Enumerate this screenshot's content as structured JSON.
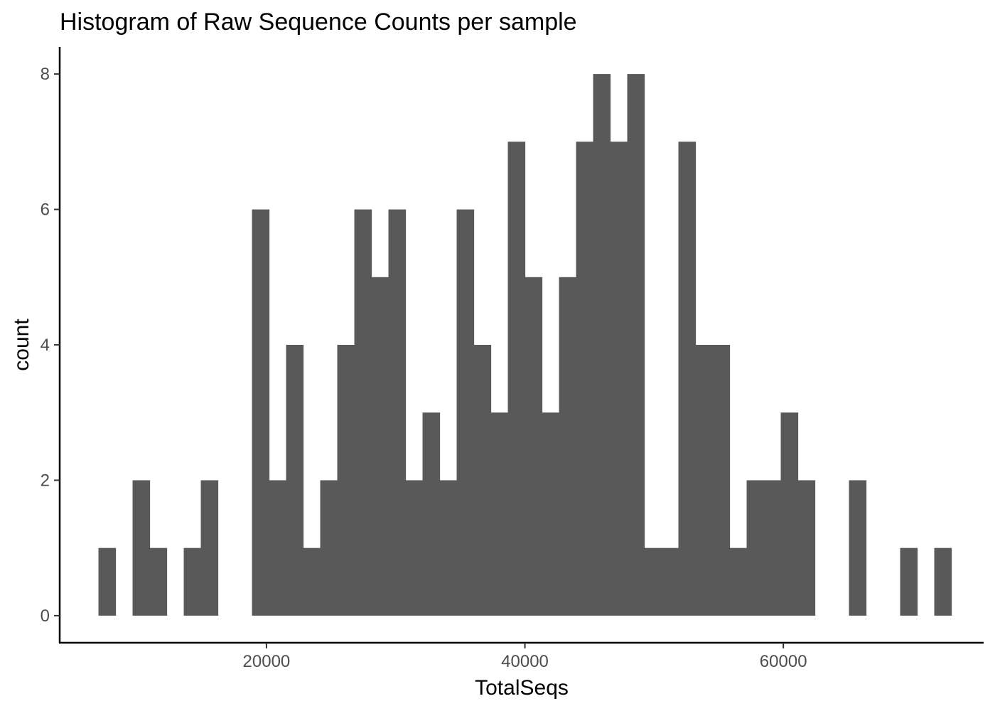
{
  "chart_data": {
    "type": "bar",
    "title": "Histogram of Raw Sequence Counts per sample",
    "xlabel": "TotalSeqs",
    "ylabel": "count",
    "x_ticks": [
      20000,
      40000,
      60000
    ],
    "y_ticks": [
      0,
      2,
      4,
      6,
      8
    ],
    "xlim": [
      4000,
      75500
    ],
    "ylim": [
      -0.4,
      8.4
    ],
    "grid": false,
    "legend": "none",
    "bin_start": 7000,
    "bin_width": 1320,
    "values": [
      1,
      0,
      2,
      1,
      0,
      1,
      2,
      0,
      0,
      6,
      2,
      4,
      1,
      2,
      4,
      6,
      5,
      6,
      2,
      3,
      2,
      6,
      4,
      3,
      7,
      5,
      3,
      5,
      7,
      8,
      7,
      8,
      1,
      1,
      7,
      4,
      4,
      1,
      2,
      2,
      3,
      2,
      0,
      0,
      2,
      0,
      0,
      1,
      0,
      1
    ],
    "bar_color": "#595959"
  }
}
